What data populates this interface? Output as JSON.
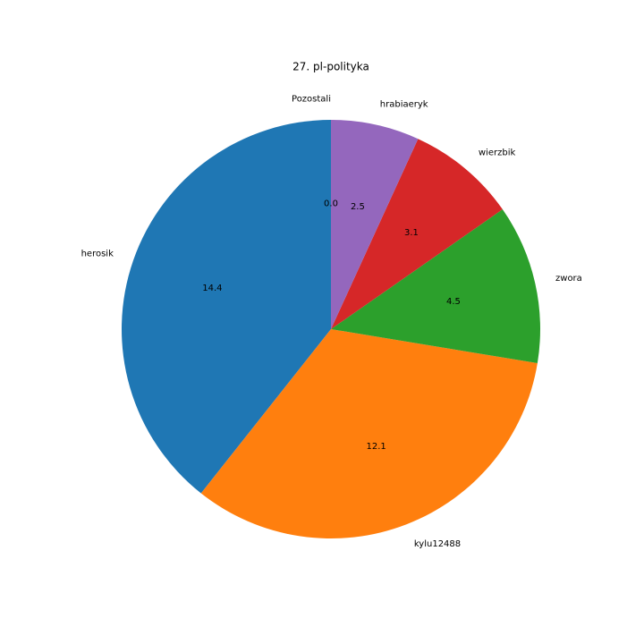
{
  "chart_data": {
    "type": "pie",
    "title": "27. pl-polityka",
    "categories": [
      "herosik",
      "kylu12488",
      "zwora",
      "wierzbik",
      "hrabiaeryk",
      "Pozostali"
    ],
    "values": [
      14.4,
      12.1,
      4.5,
      3.1,
      2.5,
      0.0
    ],
    "value_labels": [
      "14.4",
      "12.1",
      "4.5",
      "3.1",
      "2.5",
      "0.0"
    ],
    "colors": [
      "#1f77b4",
      "#ff7f0e",
      "#2ca02c",
      "#d62728",
      "#9467bd",
      "#8c564b"
    ],
    "start_angle": 90
  }
}
